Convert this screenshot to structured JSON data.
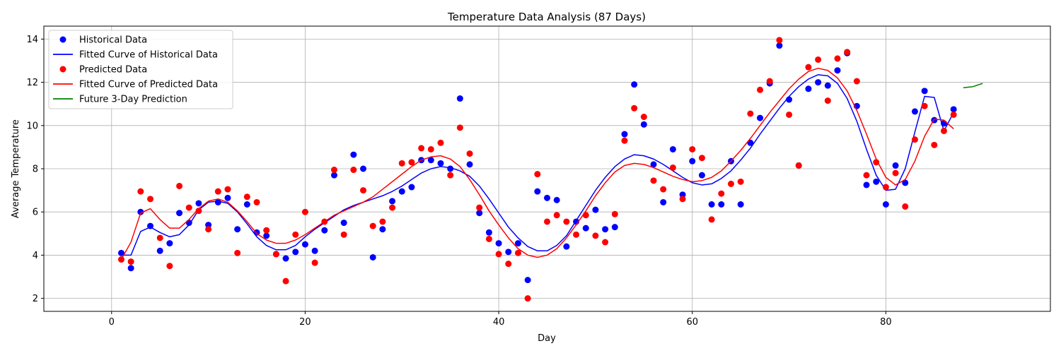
{
  "chart_data": {
    "type": "line",
    "title": "Temperature Data Analysis (87 Days)",
    "xlabel": "Day",
    "ylabel": "Average Temperature",
    "xlim": [
      -7,
      97
    ],
    "ylim": [
      1.4,
      14.6
    ],
    "xticks": [
      0,
      20,
      40,
      60,
      80
    ],
    "yticks": [
      2,
      4,
      6,
      8,
      10,
      12,
      14
    ],
    "grid": true,
    "legend_position": "top-left",
    "colors": {
      "historical": "#0000ff",
      "predicted": "#ff0000",
      "future": "#008000"
    },
    "x": [
      1,
      2,
      3,
      4,
      5,
      6,
      7,
      8,
      9,
      10,
      11,
      12,
      13,
      14,
      15,
      16,
      17,
      18,
      19,
      20,
      21,
      22,
      23,
      24,
      25,
      26,
      27,
      28,
      29,
      30,
      31,
      32,
      33,
      34,
      35,
      36,
      37,
      38,
      39,
      40,
      41,
      42,
      43,
      44,
      45,
      46,
      47,
      48,
      49,
      50,
      51,
      52,
      53,
      54,
      55,
      56,
      57,
      58,
      59,
      60,
      61,
      62,
      63,
      64,
      65,
      66,
      67,
      68,
      69,
      70,
      71,
      72,
      73,
      74,
      75,
      76,
      77,
      78,
      79,
      80,
      81,
      82,
      83,
      84,
      85,
      86,
      87
    ],
    "series": [
      {
        "name": "Historical Data",
        "kind": "scatter",
        "color": "#0000ff",
        "values": [
          4.1,
          3.4,
          6.0,
          5.35,
          4.2,
          4.55,
          5.95,
          5.5,
          6.4,
          5.4,
          6.45,
          6.65,
          5.2,
          6.35,
          5.05,
          4.9,
          4.05,
          3.85,
          4.15,
          4.5,
          4.2,
          5.15,
          7.7,
          5.5,
          8.65,
          8.0,
          3.9,
          5.2,
          6.5,
          6.95,
          7.15,
          8.4,
          8.4,
          8.25,
          8.0,
          11.25,
          8.2,
          5.95,
          5.05,
          4.55,
          4.15,
          4.55,
          2.85,
          6.95,
          6.65,
          6.55,
          4.4,
          5.55,
          5.25,
          6.1,
          5.2,
          5.3,
          9.6,
          11.9,
          10.05,
          8.2,
          6.45,
          8.9,
          6.8,
          8.35,
          7.7,
          6.35,
          6.35,
          8.35,
          6.35,
          9.2,
          10.35,
          11.95,
          13.7,
          11.2,
          8.15,
          11.7,
          12.0,
          11.85,
          12.55,
          13.35,
          10.9,
          7.25,
          7.4,
          6.35,
          8.15,
          7.35,
          10.65,
          11.6,
          10.25,
          10.1,
          10.75
        ]
      },
      {
        "name": "Fitted Curve of Historical Data",
        "kind": "line",
        "color": "#0000ff",
        "values": [
          4.0,
          4.0,
          5.1,
          5.3,
          5.05,
          4.85,
          4.95,
          5.4,
          6.1,
          6.45,
          6.5,
          6.4,
          6.0,
          5.45,
          4.85,
          4.45,
          4.25,
          4.25,
          4.45,
          4.85,
          5.2,
          5.5,
          5.8,
          6.1,
          6.3,
          6.45,
          6.6,
          6.75,
          6.95,
          7.2,
          7.5,
          7.8,
          8.0,
          8.1,
          8.05,
          7.9,
          7.65,
          7.2,
          6.6,
          5.95,
          5.3,
          4.8,
          4.4,
          4.2,
          4.2,
          4.45,
          4.9,
          5.6,
          6.3,
          7.0,
          7.6,
          8.1,
          8.45,
          8.65,
          8.6,
          8.45,
          8.2,
          7.9,
          7.6,
          7.35,
          7.25,
          7.3,
          7.55,
          7.9,
          8.4,
          8.95,
          9.6,
          10.2,
          10.8,
          11.35,
          11.8,
          12.15,
          12.35,
          12.3,
          11.95,
          11.25,
          10.2,
          8.9,
          7.7,
          7.0,
          7.05,
          8.0,
          9.7,
          11.35,
          11.3,
          9.75,
          10.6
        ]
      },
      {
        "name": "Predicted Data",
        "kind": "scatter",
        "color": "#ff0000",
        "values": [
          3.8,
          3.7,
          6.95,
          6.6,
          4.8,
          3.5,
          7.2,
          6.2,
          6.05,
          5.2,
          6.95,
          7.05,
          4.1,
          6.7,
          6.45,
          5.15,
          4.05,
          2.8,
          4.95,
          6.0,
          3.65,
          5.55,
          7.95,
          4.95,
          7.95,
          7.0,
          5.35,
          5.55,
          6.2,
          8.25,
          8.3,
          8.95,
          8.9,
          9.2,
          7.7,
          9.9,
          8.7,
          6.2,
          4.75,
          4.05,
          3.6,
          4.1,
          2.0,
          7.75,
          5.55,
          5.85,
          5.55,
          4.95,
          5.85,
          4.9,
          4.6,
          5.9,
          9.3,
          10.8,
          10.4,
          7.45,
          7.05,
          8.05,
          6.6,
          8.9,
          8.5,
          5.65,
          6.85,
          7.3,
          7.4,
          10.55,
          11.65,
          12.05,
          13.95,
          10.5,
          8.15,
          12.7,
          13.05,
          11.15,
          13.1,
          13.4,
          12.05,
          7.7,
          8.3,
          7.15,
          7.8,
          6.25,
          9.35,
          10.9,
          9.1,
          9.75,
          10.5
        ]
      },
      {
        "name": "Fitted Curve of Predicted Data",
        "kind": "line",
        "color": "#ff0000",
        "values": [
          3.8,
          4.6,
          5.95,
          6.15,
          5.65,
          5.25,
          5.25,
          5.65,
          6.15,
          6.5,
          6.6,
          6.45,
          6.05,
          5.55,
          5.0,
          4.7,
          4.55,
          4.55,
          4.7,
          4.95,
          5.25,
          5.55,
          5.85,
          6.05,
          6.25,
          6.45,
          6.7,
          7.05,
          7.4,
          7.75,
          8.1,
          8.4,
          8.55,
          8.6,
          8.45,
          8.1,
          7.5,
          6.8,
          6.05,
          5.4,
          4.8,
          4.3,
          4.0,
          3.9,
          4.0,
          4.3,
          4.8,
          5.4,
          6.05,
          6.75,
          7.35,
          7.85,
          8.15,
          8.25,
          8.2,
          8.05,
          7.85,
          7.65,
          7.5,
          7.4,
          7.45,
          7.6,
          7.9,
          8.35,
          8.85,
          9.4,
          10.0,
          10.6,
          11.15,
          11.7,
          12.15,
          12.5,
          12.65,
          12.55,
          12.2,
          11.6,
          10.7,
          9.6,
          8.45,
          7.6,
          7.25,
          7.5,
          8.35,
          9.5,
          10.3,
          10.25,
          9.85
        ]
      },
      {
        "name": "Future 3-Day Prediction",
        "kind": "line",
        "color": "#008000",
        "x": [
          88,
          89,
          90
        ],
        "values": [
          11.75,
          11.8,
          11.95
        ]
      }
    ]
  }
}
